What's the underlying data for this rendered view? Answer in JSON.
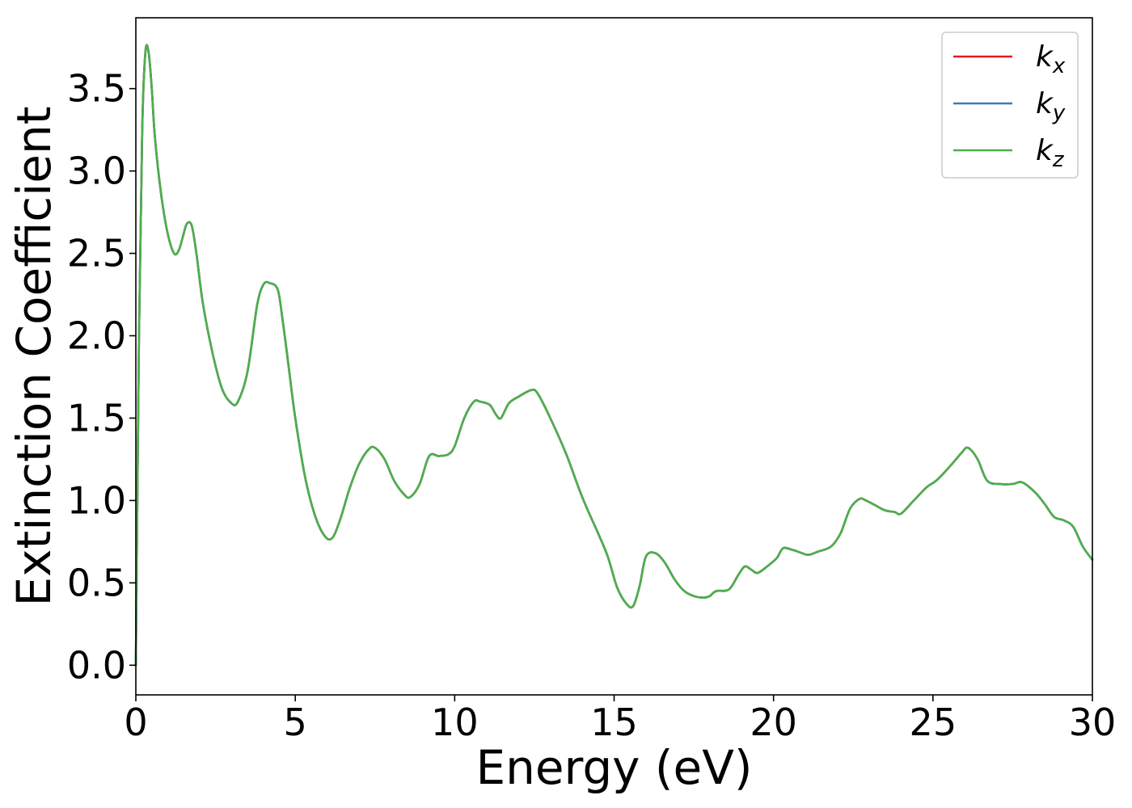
{
  "chart_data": {
    "type": "line",
    "xlabel": "Energy (eV)",
    "ylabel": "Extinction Coefficient",
    "xlim": [
      0,
      30
    ],
    "ylim": [
      -0.18,
      3.93
    ],
    "xticks": [
      0,
      5,
      10,
      15,
      20,
      25,
      30
    ],
    "xtick_labels": [
      "0",
      "5",
      "10",
      "15",
      "20",
      "25",
      "30"
    ],
    "yticks": [
      0.0,
      0.5,
      1.0,
      1.5,
      2.0,
      2.5,
      3.0,
      3.5
    ],
    "ytick_labels": [
      "0.0",
      "0.5",
      "1.0",
      "1.5",
      "2.0",
      "2.5",
      "3.0",
      "3.5"
    ],
    "grid": false,
    "legend_position": "top-right",
    "x": [
      0.0,
      0.1,
      0.2,
      0.3,
      0.4,
      0.5,
      0.6,
      0.8,
      1.0,
      1.2,
      1.35,
      1.5,
      1.6,
      1.75,
      1.9,
      2.1,
      2.4,
      2.7,
      3.0,
      3.2,
      3.5,
      3.8,
      4.0,
      4.2,
      4.45,
      4.6,
      4.8,
      5.0,
      5.3,
      5.6,
      5.9,
      6.15,
      6.4,
      6.7,
      7.0,
      7.3,
      7.5,
      7.8,
      8.1,
      8.4,
      8.6,
      8.9,
      9.2,
      9.5,
      9.8,
      10.0,
      10.3,
      10.6,
      10.8,
      11.1,
      11.3,
      11.45,
      11.7,
      12.0,
      12.4,
      12.6,
      13.0,
      13.5,
      14.0,
      14.5,
      14.8,
      15.1,
      15.4,
      15.6,
      15.8,
      16.0,
      16.3,
      16.6,
      16.9,
      17.2,
      17.5,
      17.8,
      18.0,
      18.2,
      18.6,
      18.9,
      19.1,
      19.3,
      19.5,
      19.8,
      20.1,
      20.3,
      20.6,
      20.9,
      21.1,
      21.4,
      21.8,
      22.1,
      22.4,
      22.7,
      22.9,
      23.2,
      23.5,
      23.8,
      24.0,
      24.4,
      24.8,
      25.1,
      25.5,
      25.9,
      26.1,
      26.4,
      26.7,
      27.1,
      27.5,
      27.8,
      28.2,
      28.5,
      28.8,
      29.1,
      29.4,
      29.7,
      30.0
    ],
    "series": [
      {
        "name": "k_x",
        "color": "#e41a1c"
      },
      {
        "name": "k_y",
        "color": "#377eb8"
      },
      {
        "name": "k_z",
        "color": "#4daf4a"
      }
    ],
    "values": [
      0.0,
      2.0,
      3.25,
      3.72,
      3.72,
      3.5,
      3.2,
      2.85,
      2.62,
      2.5,
      2.52,
      2.62,
      2.68,
      2.67,
      2.5,
      2.2,
      1.9,
      1.68,
      1.59,
      1.6,
      1.78,
      2.18,
      2.31,
      2.32,
      2.28,
      2.1,
      1.8,
      1.5,
      1.15,
      0.92,
      0.79,
      0.77,
      0.88,
      1.07,
      1.22,
      1.31,
      1.32,
      1.25,
      1.12,
      1.04,
      1.02,
      1.1,
      1.27,
      1.27,
      1.28,
      1.33,
      1.5,
      1.6,
      1.6,
      1.58,
      1.52,
      1.5,
      1.59,
      1.63,
      1.67,
      1.65,
      1.5,
      1.28,
      1.02,
      0.8,
      0.66,
      0.47,
      0.37,
      0.36,
      0.48,
      0.66,
      0.68,
      0.62,
      0.52,
      0.45,
      0.42,
      0.41,
      0.42,
      0.45,
      0.46,
      0.55,
      0.6,
      0.58,
      0.56,
      0.6,
      0.65,
      0.71,
      0.7,
      0.68,
      0.67,
      0.69,
      0.72,
      0.8,
      0.95,
      1.01,
      1.0,
      0.97,
      0.94,
      0.93,
      0.92,
      1.0,
      1.08,
      1.12,
      1.2,
      1.29,
      1.32,
      1.25,
      1.12,
      1.1,
      1.1,
      1.11,
      1.05,
      0.98,
      0.9,
      0.88,
      0.84,
      0.72,
      0.64
    ]
  }
}
